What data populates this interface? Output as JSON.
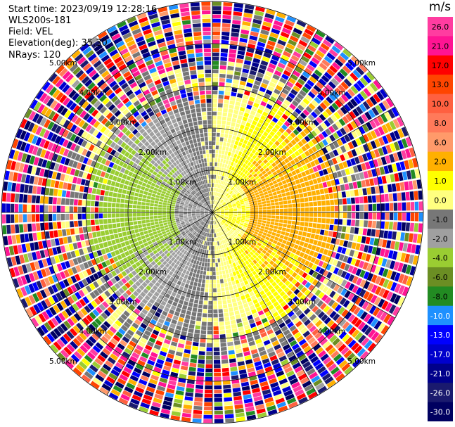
{
  "header": {
    "start_time": "Start time: 2023/09/19 12:28:16",
    "instrument": "WLS200s-181",
    "field": "Field: VEL",
    "elevation": "Elevation(deg): 35.30",
    "nrays": "NRays: 120"
  },
  "chart_data": {
    "type": "polar-ppi",
    "field": "VEL",
    "units": "m/s",
    "nrays": 120,
    "elevation_deg": 35.3,
    "range_rings": [
      "1.00km",
      "2.00km",
      "3.00km",
      "4.00km",
      "5.00km"
    ],
    "colorbar": {
      "title": "m/s",
      "tick_labels": [
        "26.0",
        "21.0",
        "17.0",
        "13.0",
        "10.0",
        "8.0",
        "6.0",
        "2.0",
        "1.0",
        "0.0",
        "-1.0",
        "-2.0",
        "-4.0",
        "-6.0",
        "-8.0",
        "-10.0",
        "-13.0",
        "-17.0",
        "-21.0",
        "-26.0",
        "-30.0"
      ],
      "bins": [
        {
          "lo": 26,
          "hi": 30,
          "color": "#ff3ca0"
        },
        {
          "lo": 21,
          "hi": 26,
          "color": "#ff1493"
        },
        {
          "lo": 17,
          "hi": 21,
          "color": "#ff0000"
        },
        {
          "lo": 13,
          "hi": 17,
          "color": "#ff4500"
        },
        {
          "lo": 10,
          "hi": 13,
          "color": "#ff6040"
        },
        {
          "lo": 8,
          "hi": 10,
          "color": "#ff7a5a"
        },
        {
          "lo": 6,
          "hi": 8,
          "color": "#ff9a6a"
        },
        {
          "lo": 2,
          "hi": 6,
          "color": "#ffb000"
        },
        {
          "lo": 1,
          "hi": 2,
          "color": "#ffff00"
        },
        {
          "lo": 0,
          "hi": 1,
          "color": "#ffff80"
        },
        {
          "lo": -1,
          "hi": 0,
          "color": "#777777"
        },
        {
          "lo": -2,
          "hi": -1,
          "color": "#a0a0a0"
        },
        {
          "lo": -4,
          "hi": -2,
          "color": "#9acd32"
        },
        {
          "lo": -6,
          "hi": -4,
          "color": "#6b8e23"
        },
        {
          "lo": -8,
          "hi": -6,
          "color": "#228b22"
        },
        {
          "lo": -10,
          "hi": -8,
          "color": "#1e90ff"
        },
        {
          "lo": -13,
          "hi": -10,
          "color": "#0000ff"
        },
        {
          "lo": -17,
          "hi": -13,
          "color": "#0000cd"
        },
        {
          "lo": -21,
          "hi": -17,
          "color": "#00008b"
        },
        {
          "lo": -26,
          "hi": -21,
          "color": "#1a1a6e"
        },
        {
          "lo": -30,
          "hi": -26,
          "color": "#000060"
        }
      ]
    }
  }
}
